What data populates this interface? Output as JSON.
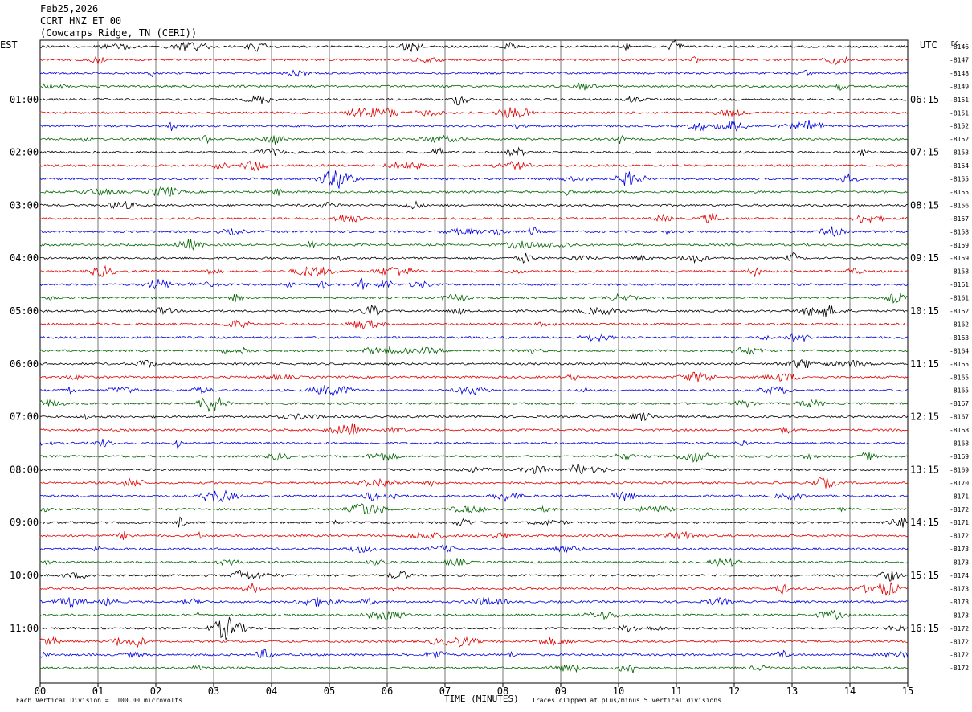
{
  "header": {
    "date": "Feb25,2026",
    "station": "CCRT HNZ ET 00",
    "location": "(Cowcamps Ridge, TN (CERI))"
  },
  "chart_data": {
    "type": "line",
    "title": "",
    "xlabel": "TIME (MINUTES)",
    "left_axis_label": "EST",
    "right_axis_label": "UTC",
    "dc_label": "DC",
    "x_ticks": [
      "00",
      "01",
      "02",
      "03",
      "04",
      "05",
      "06",
      "07",
      "08",
      "09",
      "10",
      "11",
      "12",
      "13",
      "14",
      "15"
    ],
    "xlim": [
      0,
      15
    ],
    "grid": true,
    "row_count": 48,
    "row_colors": [
      "#000000",
      "#e00000",
      "#0000e0",
      "#006400"
    ],
    "left_hour_labels": [
      {
        "row": 4,
        "label": "01:00"
      },
      {
        "row": 8,
        "label": "02:00"
      },
      {
        "row": 12,
        "label": "03:00"
      },
      {
        "row": 16,
        "label": "04:00"
      },
      {
        "row": 20,
        "label": "05:00"
      },
      {
        "row": 24,
        "label": "06:00"
      },
      {
        "row": 28,
        "label": "07:00"
      },
      {
        "row": 32,
        "label": "08:00"
      },
      {
        "row": 36,
        "label": "09:00"
      },
      {
        "row": 40,
        "label": "10:00"
      },
      {
        "row": 44,
        "label": "11:00"
      }
    ],
    "right_hour_labels": [
      {
        "row": 4,
        "label": "06:15"
      },
      {
        "row": 8,
        "label": "07:15"
      },
      {
        "row": 12,
        "label": "08:15"
      },
      {
        "row": 16,
        "label": "09:15"
      },
      {
        "row": 20,
        "label": "10:15"
      },
      {
        "row": 24,
        "label": "11:15"
      },
      {
        "row": 28,
        "label": "12:15"
      },
      {
        "row": 32,
        "label": "13:15"
      },
      {
        "row": 36,
        "label": "14:15"
      },
      {
        "row": 40,
        "label": "15:15"
      },
      {
        "row": 44,
        "label": "16:15"
      }
    ],
    "dc_offsets": [
      "-8146",
      "-8147",
      "-8148",
      "-8149",
      "-8151",
      "-8151",
      "-8152",
      "-8152",
      "-8153",
      "-8154",
      "-8155",
      "-8155",
      "-8156",
      "-8157",
      "-8158",
      "-8159",
      "-8159",
      "-8158",
      "-8161",
      "-8161",
      "-8162",
      "-8162",
      "-8163",
      "-8164",
      "-8165",
      "-8165",
      "-8165",
      "-8167",
      "-8167",
      "-8168",
      "-8168",
      "-8169",
      "-8169",
      "-8170",
      "-8171",
      "-8172",
      "-8171",
      "-8172",
      "-8173",
      "-8173",
      "-8174",
      "-8173",
      "-8173",
      "-8173",
      "-8172",
      "-8172",
      "-8172",
      "-8172"
    ],
    "footer_scale": "Each Vertical Division =  100.00 microvolts",
    "footer_clip": "Traces clipped at plus/minus 5 vertical divisions"
  }
}
